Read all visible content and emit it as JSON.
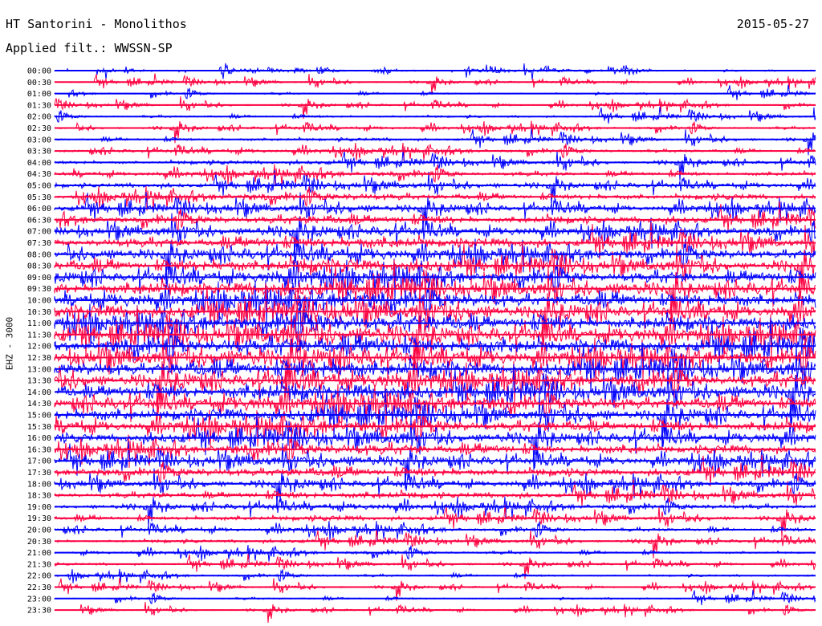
{
  "header": {
    "station": "HT Santorini - Monolithos",
    "filter": "Applied filt.: WWSSN-SP",
    "date": "2015-05-27"
  },
  "chart_data": {
    "type": "line",
    "title": "HT Santorini - Monolithos",
    "subtitle": "Applied filt.: WWSSN-SP",
    "date": "2015-05-27",
    "ylabel": "EHZ - 3000",
    "row_labels": [
      "00:00",
      "00:30",
      "01:00",
      "01:30",
      "02:00",
      "02:30",
      "03:00",
      "03:30",
      "04:00",
      "04:30",
      "05:00",
      "05:30",
      "06:00",
      "06:30",
      "07:00",
      "07:30",
      "08:00",
      "08:30",
      "09:00",
      "09:30",
      "10:00",
      "10:30",
      "11:00",
      "11:30",
      "12:00",
      "12:30",
      "13:00",
      "13:30",
      "14:00",
      "14:30",
      "15:00",
      "15:30",
      "16:00",
      "16:30",
      "17:00",
      "17:30",
      "18:00",
      "18:30",
      "19:00",
      "19:30",
      "20:00",
      "20:30",
      "21:00",
      "21:30",
      "22:00",
      "22:30",
      "23:00",
      "23:30"
    ],
    "row_colors": [
      "#0000ff",
      "#ff0040"
    ],
    "grid": false,
    "legend": "none"
  }
}
